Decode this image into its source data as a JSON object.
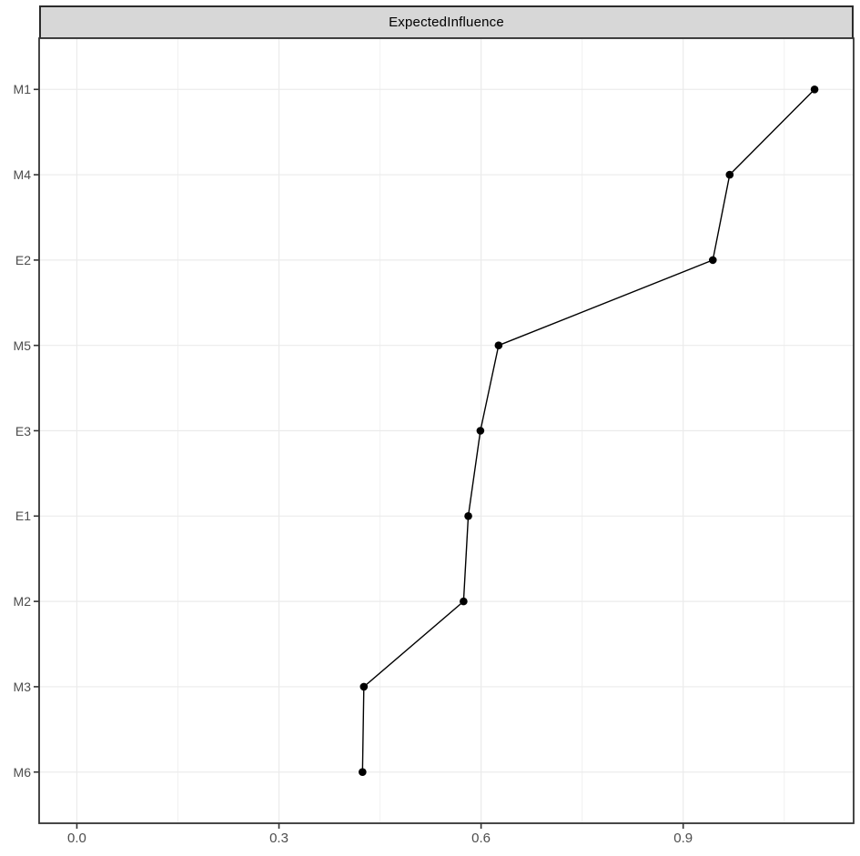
{
  "chart_data": {
    "type": "line",
    "subtype": "horizontal-dot-line-centrality-plot",
    "title": "ExpectedInfluence",
    "categories": [
      "M1",
      "M4",
      "E2",
      "M5",
      "E3",
      "E1",
      "M2",
      "M3",
      "M6"
    ],
    "values": [
      1.095,
      0.969,
      0.944,
      0.626,
      0.599,
      0.581,
      0.574,
      0.426,
      0.424
    ],
    "x_tick_labels": [
      "0.0",
      "0.3",
      "0.6",
      "0.9"
    ],
    "x_ticks": [
      0.0,
      0.3,
      0.6,
      0.9
    ],
    "x_minor_ticks": [
      0.15,
      0.45,
      0.75,
      1.05
    ],
    "xlim": [
      -0.056,
      1.153
    ],
    "xlabel": "",
    "ylabel": "",
    "legend": "none",
    "grid": "major-and-minor-vertical, per-category-horizontal"
  },
  "colors": {
    "background": "#ffffff",
    "strip_fill": "#d7d7d7",
    "strip_border": "#2b2b2b",
    "panel_background": "#ffffff",
    "panel_border": "#333333",
    "grid_major": "#ebebeb",
    "grid_minor": "#f1f1f1",
    "tick_mark": "#333333",
    "axis_text": "#4d4d4d",
    "series": "#000000"
  }
}
